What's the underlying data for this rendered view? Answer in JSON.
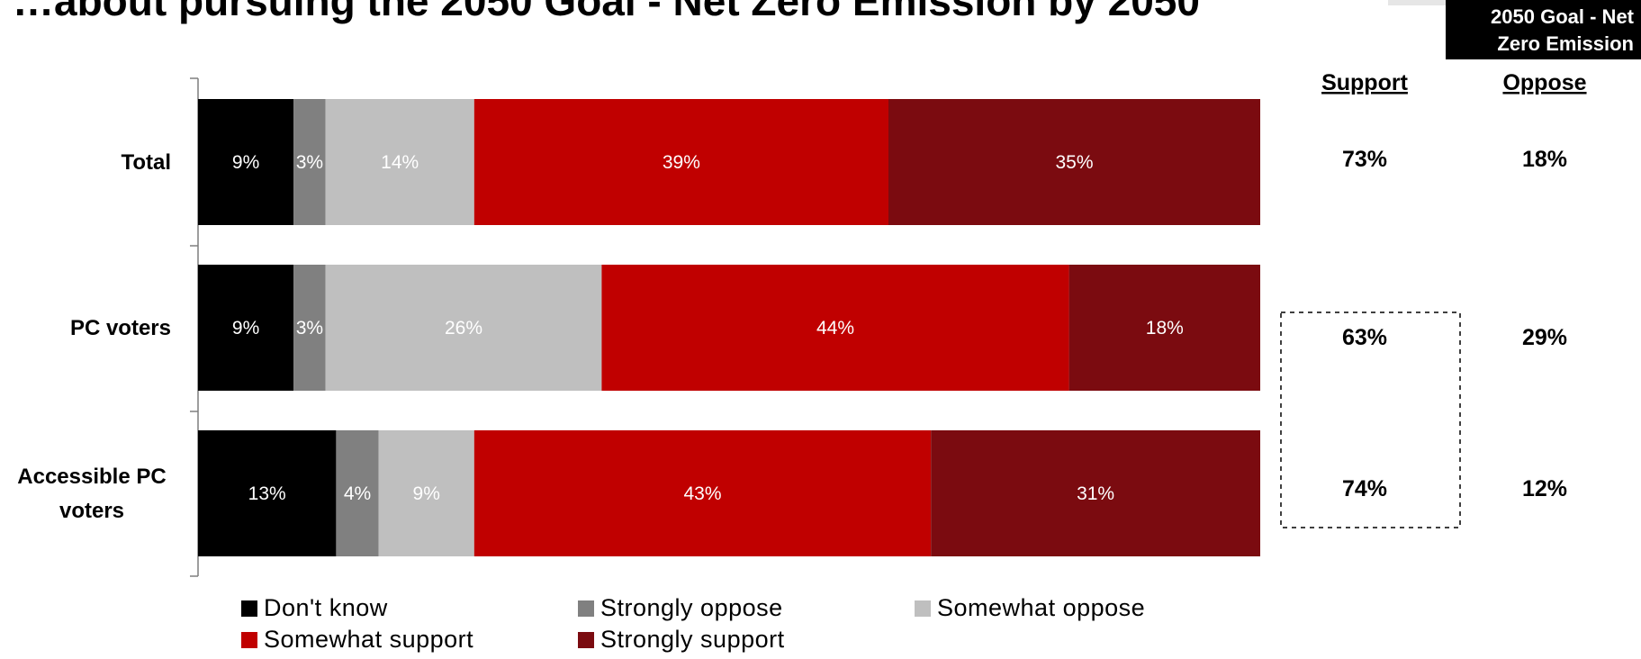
{
  "title": "…about pursuing the 2050 Goal - Net Zero Emission by 2050",
  "goal_label_line1": "2050 Goal - Net",
  "goal_label_line2": "Zero Emission",
  "net_headers": {
    "support": "Support",
    "oppose": "Oppose"
  },
  "chart_data": {
    "type": "bar",
    "orientation": "horizontal",
    "stacked": true,
    "xlim": [
      0,
      100
    ],
    "value_suffix": "%",
    "categories": [
      "Total",
      "PC voters",
      "Accessible PC voters"
    ],
    "series": [
      {
        "name": "Don't know",
        "color": "#000000",
        "values": [
          9,
          9,
          13
        ]
      },
      {
        "name": "Strongly oppose",
        "color": "#808080",
        "values": [
          3,
          3,
          4
        ]
      },
      {
        "name": "Somewhat oppose",
        "color": "#bfbfbf",
        "values": [
          14,
          26,
          9
        ]
      },
      {
        "name": "Somewhat support",
        "color": "#c00000",
        "values": [
          39,
          44,
          43
        ]
      },
      {
        "name": "Strongly support",
        "color": "#7b0b10",
        "values": [
          35,
          18,
          31
        ]
      }
    ],
    "net_support": [
      "73%",
      "63%",
      "74%"
    ],
    "net_oppose": [
      "18%",
      "29%",
      "12%"
    ],
    "legend_position": "bottom"
  }
}
